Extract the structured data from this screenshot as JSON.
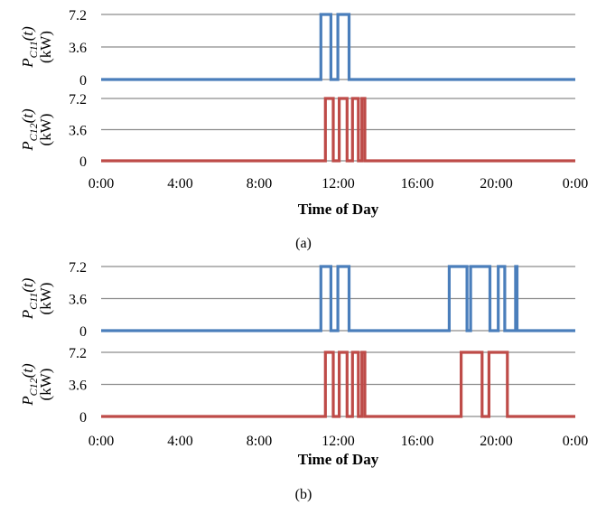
{
  "chart_data": [
    {
      "panel": "(a)",
      "type": "line",
      "xlabel": "Time of Day",
      "x_ticks": [
        "0:00",
        "4:00",
        "8:00",
        "12:00",
        "16:00",
        "20:00",
        "0:00"
      ],
      "x_range_hours": [
        0,
        24
      ],
      "subplots": [
        {
          "ylabel_main": "P",
          "ylabel_sub": "C11",
          "ylabel_arg": "(t)",
          "ylabel_unit": "(kW)",
          "y_ticks": [
            "7.2",
            "3.6",
            "0"
          ],
          "ylim": [
            0,
            7.2
          ],
          "grid": true,
          "color": "#4a7ebb",
          "on_intervals_hours": [
            [
              11.12,
              11.63
            ],
            [
              11.98,
              12.55
            ]
          ],
          "on_value": 7.2
        },
        {
          "ylabel_main": "P",
          "ylabel_sub": "C12",
          "ylabel_arg": "(t)",
          "ylabel_unit": "(kW)",
          "y_ticks": [
            "7.2",
            "3.6",
            "0"
          ],
          "ylim": [
            0,
            7.2
          ],
          "grid": true,
          "color": "#be4b48",
          "on_intervals_hours": [
            [
              11.35,
              11.75
            ],
            [
              12.05,
              12.45
            ],
            [
              12.72,
              13.02
            ],
            [
              13.2,
              13.35
            ]
          ],
          "on_value": 7.2
        }
      ]
    },
    {
      "panel": "(b)",
      "type": "line",
      "xlabel": "Time of Day",
      "x_ticks": [
        "0:00",
        "4:00",
        "8:00",
        "12:00",
        "16:00",
        "20:00",
        "0:00"
      ],
      "x_range_hours": [
        0,
        24
      ],
      "subplots": [
        {
          "ylabel_main": "P",
          "ylabel_sub": "C11",
          "ylabel_arg": "(t)",
          "ylabel_unit": "(kW)",
          "y_ticks": [
            "7.2",
            "3.6",
            "0"
          ],
          "ylim": [
            0,
            7.2
          ],
          "grid": true,
          "color": "#4a7ebb",
          "on_intervals_hours": [
            [
              11.12,
              11.63
            ],
            [
              11.98,
              12.55
            ],
            [
              17.62,
              18.52
            ],
            [
              18.7,
              19.68
            ],
            [
              20.1,
              20.43
            ],
            [
              20.98,
              21.05
            ]
          ],
          "on_value": 7.2
        },
        {
          "ylabel_main": "P",
          "ylabel_sub": "C12",
          "ylabel_arg": "(t)",
          "ylabel_unit": "(kW)",
          "y_ticks": [
            "7.2",
            "3.6",
            "0"
          ],
          "ylim": [
            0,
            7.2
          ],
          "grid": true,
          "color": "#be4b48",
          "on_intervals_hours": [
            [
              11.35,
              11.75
            ],
            [
              12.05,
              12.45
            ],
            [
              12.72,
              13.02
            ],
            [
              13.2,
              13.35
            ],
            [
              18.22,
              19.28
            ],
            [
              19.63,
              20.56
            ]
          ],
          "on_value": 7.2
        }
      ]
    }
  ]
}
